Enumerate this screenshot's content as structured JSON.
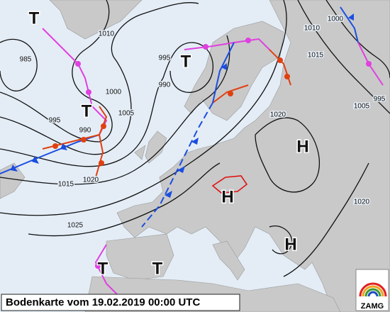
{
  "caption": "Bodenkarte vom 19.02.2019 00:00 UTC",
  "logo": "ZAMG",
  "pressure_centers": [
    "T",
    "T",
    "T",
    "H",
    "H",
    "H",
    "T",
    "T"
  ],
  "isobar_labels": [
    "985",
    "990",
    "995",
    "1000",
    "1005",
    "1010",
    "1015",
    "1020",
    "1025",
    "990",
    "995",
    "1000",
    "1005",
    "1010",
    "1015",
    "1020",
    "995",
    "1020"
  ]
}
